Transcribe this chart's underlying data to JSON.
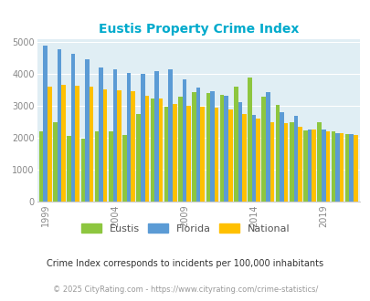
{
  "title": "Eustis Property Crime Index",
  "years": [
    1999,
    2000,
    2001,
    2002,
    2003,
    2004,
    2005,
    2006,
    2007,
    2008,
    2009,
    2010,
    2011,
    2012,
    2013,
    2014,
    2015,
    2016,
    2017,
    2018,
    2019,
    2020,
    2021
  ],
  "eustis": [
    2200,
    2500,
    2050,
    1980,
    2200,
    2200,
    2100,
    2750,
    3250,
    2970,
    3300,
    3450,
    3400,
    3350,
    3600,
    3900,
    3300,
    3050,
    2500,
    2230,
    2490,
    2200,
    2130
  ],
  "florida": [
    4900,
    4780,
    4650,
    4480,
    4200,
    4150,
    4030,
    4000,
    4100,
    4150,
    3850,
    3570,
    3480,
    3330,
    3110,
    2720,
    3450,
    2800,
    2680,
    2260,
    2250,
    2150,
    2130
  ],
  "national": [
    3600,
    3680,
    3640,
    3600,
    3520,
    3490,
    3460,
    3330,
    3240,
    3060,
    3010,
    2970,
    2950,
    2880,
    2740,
    2600,
    2490,
    2460,
    2360,
    2250,
    2200,
    2150,
    2100
  ],
  "eustis_color": "#8DC63F",
  "florida_color": "#5B9BD5",
  "national_color": "#FFC000",
  "bg_color": "#E0EEF4",
  "ylim": [
    0,
    5100
  ],
  "yticks": [
    0,
    1000,
    2000,
    3000,
    4000,
    5000
  ],
  "footnote1": "Crime Index corresponds to incidents per 100,000 inhabitants",
  "footnote2": "© 2025 CityRating.com - https://www.cityrating.com/crime-statistics/",
  "legend_labels": [
    "Eustis",
    "Florida",
    "National"
  ],
  "xtick_years": [
    1999,
    2004,
    2009,
    2014,
    2019
  ],
  "title_color": "#00AACC",
  "footnote1_color": "#333333",
  "footnote2_color": "#999999"
}
